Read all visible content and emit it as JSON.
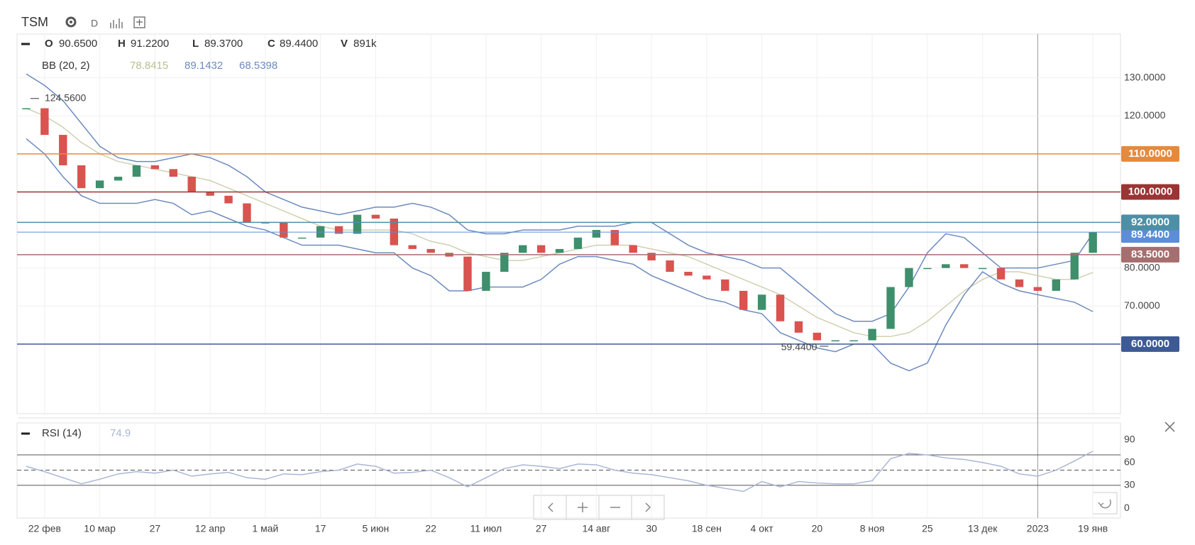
{
  "header": {
    "symbol": "TSM",
    "interval": "D"
  },
  "chart_data": [
    {
      "type": "candlestick",
      "legend": [
        {
          "key": "O",
          "value": "90.6500"
        },
        {
          "key": "H",
          "value": "91.2200"
        },
        {
          "key": "L",
          "value": "89.3700"
        },
        {
          "key": "C",
          "value": "89.4400"
        },
        {
          "key": "V",
          "value": "891k"
        }
      ],
      "indicator": {
        "name": "BB (20, 2)",
        "values": [
          "78.8415",
          "89.1432",
          "68.5398"
        ],
        "colors": [
          "#b7c08e",
          "#6d8bbd",
          "#6d8bbd"
        ]
      },
      "categories": [
        null,
        "22 фев",
        null,
        null,
        "10 мар",
        null,
        null,
        "27",
        null,
        null,
        "12 апр",
        null,
        null,
        "1 май",
        null,
        null,
        "17",
        null,
        null,
        "5 июн",
        null,
        null,
        "22",
        null,
        null,
        "11 июл",
        null,
        null,
        "27",
        null,
        null,
        "14 авг",
        null,
        null,
        "30",
        null,
        null,
        "18 сен",
        null,
        null,
        "4 окт",
        null,
        null,
        "20",
        null,
        null,
        "8 ноя",
        null,
        null,
        "25",
        null,
        null,
        "13 дек",
        null,
        null,
        "2023",
        null,
        null,
        "19 янв"
      ],
      "series": [
        {
          "up_color": "#3e8f6b",
          "down_color": "#d9534f",
          "values": [
            122,
            115,
            107,
            101,
            103,
            104,
            107,
            106,
            104,
            100,
            99,
            97,
            92,
            92,
            88,
            88,
            91,
            89,
            94,
            93,
            86,
            85,
            84,
            83,
            74,
            79,
            84,
            86,
            84,
            85,
            88,
            90,
            86,
            84,
            82,
            79,
            78,
            77,
            74,
            69,
            73,
            66,
            63,
            61,
            61,
            61,
            64,
            75,
            80,
            80,
            81,
            80,
            80,
            77,
            75,
            74,
            77,
            84,
            89.44
          ]
        },
        {
          "color": "#cfd0b0",
          "values": [
            122,
            120,
            117,
            113,
            110,
            108,
            107,
            106,
            105,
            104,
            103,
            101,
            99,
            97,
            95,
            93,
            91,
            90,
            90,
            90,
            90,
            89,
            87,
            86,
            84,
            83,
            82,
            82,
            83,
            84,
            85,
            86,
            86,
            86,
            85,
            84,
            83,
            81,
            79,
            77,
            75,
            73,
            70,
            67,
            65,
            63,
            62,
            62,
            63,
            66,
            70,
            74,
            77,
            79,
            79,
            78,
            77,
            77,
            78.8415
          ]
        },
        {
          "color": "#6d8bbd",
          "values": [
            131,
            128,
            124,
            118,
            112,
            109,
            108,
            108,
            109,
            110,
            109,
            107,
            104,
            100,
            98,
            96,
            95,
            94,
            95,
            96,
            96,
            97,
            96,
            94,
            90,
            89,
            89,
            90,
            90,
            90,
            91,
            91,
            91,
            92,
            92,
            89,
            86,
            84,
            83,
            82,
            80,
            80,
            76,
            72,
            68,
            66,
            66,
            68,
            75,
            84,
            89,
            88,
            84,
            80,
            80,
            80,
            81,
            82,
            89.1432
          ]
        },
        {
          "color": "#6d8bbd",
          "values": [
            114,
            110,
            104,
            99,
            97,
            97,
            97,
            98,
            97,
            94,
            95,
            93,
            91,
            90,
            88,
            86,
            86,
            86,
            85,
            84,
            84,
            80,
            78,
            74,
            74,
            75,
            75,
            75,
            77,
            81,
            83,
            83,
            82,
            81,
            78,
            76,
            74,
            72,
            71,
            69,
            68,
            63,
            61,
            59,
            58,
            60,
            60,
            55,
            53,
            55,
            65,
            73,
            79,
            76,
            74,
            73,
            72,
            71,
            68.5398
          ]
        }
      ],
      "ylim": [
        41.7,
        141.5
      ],
      "yticks": [
        {
          "value": 130,
          "label": "130.0000"
        },
        {
          "value": 120,
          "label": "120.0000"
        },
        {
          "value": 80,
          "label": "80.0000"
        },
        {
          "value": 70,
          "label": "70.0000"
        }
      ],
      "levels": [
        {
          "value": 110,
          "label": "110.0000",
          "color": "#e58a3c"
        },
        {
          "value": 100,
          "label": "100.0000",
          "color": "#9b3434"
        },
        {
          "value": 92,
          "label": "92.0000",
          "color": "#4d8fa6"
        },
        {
          "value": 83.5,
          "label": "83.5000",
          "color": "#a66e6e"
        },
        {
          "value": 60,
          "label": "60.0000",
          "color": "#3d5a94"
        }
      ],
      "last": {
        "value": 89.44,
        "label": "89.4400",
        "color": "#5b8ed6"
      },
      "annotations": [
        {
          "value": 124.56,
          "label": "124.5600"
        },
        {
          "value": 59.44,
          "label": "59.4400"
        }
      ]
    },
    {
      "type": "line",
      "title": "RSI (14)",
      "current": "74.9",
      "color": "#a9b6d6",
      "values": [
        55,
        48,
        40,
        32,
        38,
        45,
        48,
        46,
        50,
        42,
        45,
        47,
        40,
        38,
        45,
        44,
        48,
        50,
        58,
        55,
        46,
        47,
        50,
        40,
        28,
        40,
        52,
        57,
        55,
        52,
        58,
        57,
        50,
        46,
        44,
        40,
        36,
        30,
        26,
        22,
        35,
        28,
        35,
        33,
        32,
        32,
        36,
        65,
        72,
        70,
        66,
        64,
        60,
        55,
        45,
        42,
        50,
        62,
        74.9
      ],
      "ylim": [
        -13,
        112
      ],
      "yticks": [
        90,
        60,
        30,
        0
      ],
      "bands": [
        70,
        30
      ],
      "midline": 50
    }
  ]
}
